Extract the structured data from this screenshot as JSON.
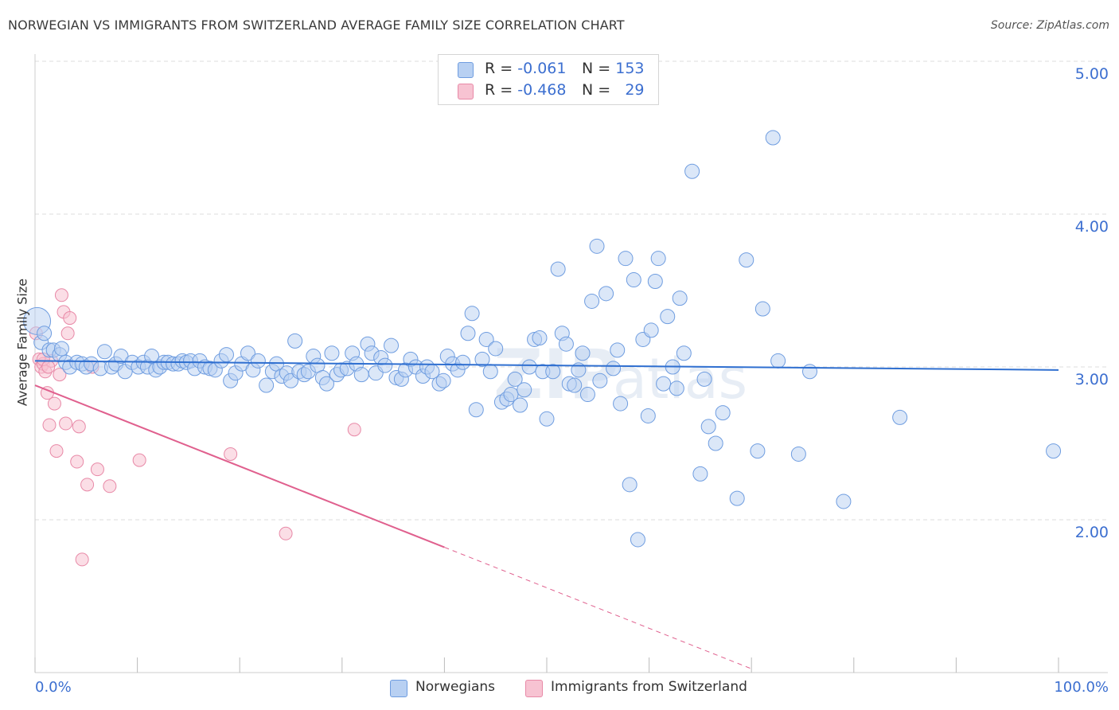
{
  "header": {
    "title": "NORWEGIAN VS IMMIGRANTS FROM SWITZERLAND AVERAGE FAMILY SIZE CORRELATION CHART",
    "source": "Source: ZipAtlas.com"
  },
  "legend": {
    "rows": [
      {
        "r_label": "R =",
        "r_value": "-0.061",
        "n_label": "N =",
        "n_value": "153"
      },
      {
        "r_label": "R =",
        "r_value": "-0.468",
        "n_label": "N =",
        "n_value": "29"
      }
    ],
    "bottom": [
      "Norwegians",
      "Immigrants from Switzerland"
    ]
  },
  "colors": {
    "blue_fill": "#b8d0f2",
    "blue_stroke": "#6f9de0",
    "blue_line": "#2f6fd0",
    "pink_fill": "#f7c3d2",
    "pink_stroke": "#e889a7",
    "pink_line": "#e0608e",
    "tick_label": "#3c6fd0",
    "grid": "#dddddd"
  },
  "chart_data": {
    "type": "scatter",
    "title": "NORWEGIAN VS IMMIGRANTS FROM SWITZERLAND AVERAGE FAMILY SIZE CORRELATION CHART",
    "ylabel": "Average Family Size",
    "xlabel": "",
    "xlim": [
      0,
      100
    ],
    "ylim": [
      1.0,
      5.1
    ],
    "x_tick_labels": [
      "0.0%",
      "100.0%"
    ],
    "y_ticks": [
      2.0,
      3.0,
      4.0,
      5.0
    ],
    "y_tick_labels": [
      "2.00",
      "3.00",
      "4.00",
      "5.00"
    ],
    "grid": true,
    "legend_placement": "top-center",
    "series": [
      {
        "name": "Norwegians",
        "r": -0.061,
        "n": 153,
        "trend": {
          "x0": 0,
          "y0": 3.04,
          "x1": 100,
          "y1": 2.98
        },
        "points": [
          [
            0.2,
            3.3
          ],
          [
            0.6,
            3.16
          ],
          [
            0.9,
            3.22
          ],
          [
            1.4,
            3.11
          ],
          [
            1.8,
            3.11
          ],
          [
            2.4,
            3.08
          ],
          [
            2.6,
            3.12
          ],
          [
            3.0,
            3.03
          ],
          [
            3.4,
            3.0
          ],
          [
            4.1,
            3.03
          ],
          [
            4.6,
            3.02
          ],
          [
            5.0,
            3.0
          ],
          [
            5.5,
            3.02
          ],
          [
            6.4,
            2.99
          ],
          [
            6.8,
            3.1
          ],
          [
            7.5,
            3.0
          ],
          [
            7.9,
            3.02
          ],
          [
            8.4,
            3.07
          ],
          [
            8.8,
            2.97
          ],
          [
            9.5,
            3.03
          ],
          [
            10.1,
            3.0
          ],
          [
            10.6,
            3.03
          ],
          [
            11.0,
            3.0
          ],
          [
            11.4,
            3.07
          ],
          [
            11.8,
            2.98
          ],
          [
            12.2,
            3.0
          ],
          [
            12.6,
            3.03
          ],
          [
            13.0,
            3.03
          ],
          [
            13.5,
            3.02
          ],
          [
            14.0,
            3.02
          ],
          [
            14.4,
            3.04
          ],
          [
            14.8,
            3.03
          ],
          [
            15.2,
            3.04
          ],
          [
            15.6,
            2.99
          ],
          [
            16.1,
            3.04
          ],
          [
            16.6,
            3.0
          ],
          [
            17.1,
            2.99
          ],
          [
            17.6,
            2.98
          ],
          [
            18.2,
            3.04
          ],
          [
            18.7,
            3.08
          ],
          [
            19.1,
            2.91
          ],
          [
            19.6,
            2.96
          ],
          [
            20.2,
            3.02
          ],
          [
            20.8,
            3.09
          ],
          [
            21.3,
            2.98
          ],
          [
            21.8,
            3.04
          ],
          [
            22.6,
            2.88
          ],
          [
            23.2,
            2.97
          ],
          [
            23.6,
            3.02
          ],
          [
            24.1,
            2.94
          ],
          [
            24.6,
            2.96
          ],
          [
            25.0,
            2.91
          ],
          [
            25.4,
            3.17
          ],
          [
            25.8,
            2.97
          ],
          [
            26.3,
            2.95
          ],
          [
            26.7,
            2.97
          ],
          [
            27.2,
            3.07
          ],
          [
            27.6,
            3.01
          ],
          [
            28.1,
            2.93
          ],
          [
            28.5,
            2.89
          ],
          [
            29.0,
            3.09
          ],
          [
            29.5,
            2.95
          ],
          [
            29.9,
            2.98
          ],
          [
            30.5,
            2.99
          ],
          [
            31.0,
            3.09
          ],
          [
            31.4,
            3.02
          ],
          [
            31.9,
            2.95
          ],
          [
            32.5,
            3.15
          ],
          [
            32.9,
            3.09
          ],
          [
            33.3,
            2.96
          ],
          [
            33.8,
            3.06
          ],
          [
            34.2,
            3.01
          ],
          [
            34.8,
            3.14
          ],
          [
            35.3,
            2.93
          ],
          [
            35.8,
            2.92
          ],
          [
            36.2,
            2.98
          ],
          [
            36.7,
            3.05
          ],
          [
            37.2,
            3.0
          ],
          [
            37.9,
            2.94
          ],
          [
            38.3,
            3.0
          ],
          [
            38.8,
            2.97
          ],
          [
            39.5,
            2.89
          ],
          [
            39.9,
            2.91
          ],
          [
            40.3,
            3.07
          ],
          [
            40.8,
            3.02
          ],
          [
            41.3,
            2.98
          ],
          [
            41.8,
            3.03
          ],
          [
            42.3,
            3.22
          ],
          [
            42.7,
            3.35
          ],
          [
            43.1,
            2.72
          ],
          [
            43.7,
            3.05
          ],
          [
            44.1,
            3.18
          ],
          [
            44.5,
            2.97
          ],
          [
            45.0,
            3.12
          ],
          [
            45.6,
            2.77
          ],
          [
            46.1,
            2.79
          ],
          [
            46.5,
            2.82
          ],
          [
            46.9,
            2.92
          ],
          [
            47.4,
            2.75
          ],
          [
            47.8,
            2.85
          ],
          [
            48.3,
            3.0
          ],
          [
            48.8,
            3.18
          ],
          [
            49.3,
            3.19
          ],
          [
            49.6,
            2.97
          ],
          [
            50.0,
            2.66
          ],
          [
            50.6,
            2.97
          ],
          [
            51.1,
            3.64
          ],
          [
            51.5,
            3.22
          ],
          [
            51.9,
            3.15
          ],
          [
            52.2,
            2.89
          ],
          [
            52.7,
            2.88
          ],
          [
            53.1,
            2.98
          ],
          [
            53.5,
            3.09
          ],
          [
            54.0,
            2.82
          ],
          [
            54.4,
            3.43
          ],
          [
            54.9,
            3.79
          ],
          [
            55.2,
            2.91
          ],
          [
            55.8,
            3.48
          ],
          [
            56.5,
            2.99
          ],
          [
            56.9,
            3.11
          ],
          [
            57.2,
            2.76
          ],
          [
            57.7,
            3.71
          ],
          [
            58.1,
            2.23
          ],
          [
            58.5,
            3.57
          ],
          [
            58.9,
            1.87
          ],
          [
            59.4,
            3.18
          ],
          [
            59.9,
            2.68
          ],
          [
            60.2,
            3.24
          ],
          [
            60.6,
            3.56
          ],
          [
            60.9,
            3.71
          ],
          [
            61.4,
            2.89
          ],
          [
            61.8,
            3.33
          ],
          [
            62.3,
            3.0
          ],
          [
            62.7,
            2.86
          ],
          [
            63.0,
            3.45
          ],
          [
            63.4,
            3.09
          ],
          [
            64.2,
            4.28
          ],
          [
            65.0,
            2.3
          ],
          [
            65.4,
            2.92
          ],
          [
            65.8,
            2.61
          ],
          [
            66.5,
            2.5
          ],
          [
            67.2,
            2.7
          ],
          [
            68.6,
            2.14
          ],
          [
            69.5,
            3.7
          ],
          [
            70.6,
            2.45
          ],
          [
            71.1,
            3.38
          ],
          [
            72.1,
            4.5
          ],
          [
            72.6,
            3.04
          ],
          [
            74.6,
            2.43
          ],
          [
            75.7,
            2.97
          ],
          [
            79.0,
            2.12
          ],
          [
            84.5,
            2.67
          ],
          [
            99.5,
            2.45
          ]
        ]
      },
      {
        "name": "Immigrants from Switzerland",
        "r": -0.468,
        "n": 29,
        "trend": {
          "x0": 0,
          "y0": 2.88,
          "x1": 40.0,
          "y1": 1.82,
          "dash_to_x": 70.0
        },
        "points": [
          [
            0.1,
            3.22
          ],
          [
            0.4,
            3.05
          ],
          [
            0.6,
            3.0
          ],
          [
            0.8,
            3.02
          ],
          [
            1.0,
            2.97
          ],
          [
            1.2,
            2.83
          ],
          [
            1.4,
            2.62
          ],
          [
            1.6,
            3.04
          ],
          [
            1.9,
            2.76
          ],
          [
            2.1,
            2.45
          ],
          [
            2.4,
            2.95
          ],
          [
            2.6,
            3.47
          ],
          [
            2.8,
            3.36
          ],
          [
            3.0,
            2.63
          ],
          [
            3.2,
            3.22
          ],
          [
            3.4,
            3.32
          ],
          [
            4.1,
            2.38
          ],
          [
            4.3,
            2.61
          ],
          [
            4.6,
            1.74
          ],
          [
            5.1,
            2.23
          ],
          [
            5.6,
            3.0
          ],
          [
            6.1,
            2.33
          ],
          [
            7.3,
            2.22
          ],
          [
            10.2,
            2.39
          ],
          [
            19.1,
            2.43
          ],
          [
            24.5,
            1.91
          ],
          [
            31.2,
            2.59
          ],
          [
            0.8,
            3.05
          ],
          [
            1.3,
            3.0
          ]
        ]
      }
    ]
  }
}
